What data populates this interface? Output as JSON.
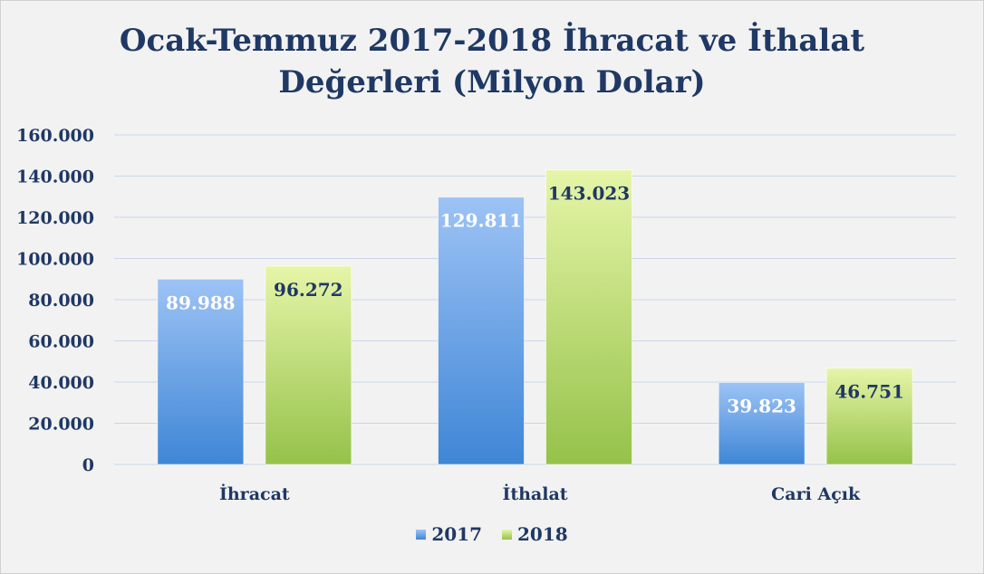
{
  "chart_data": {
    "type": "bar",
    "title_lines": [
      "Ocak-Temmuz 2017-2018 İhracat ve İthalat",
      "Değerleri (Milyon Dolar)"
    ],
    "categories": [
      "İhracat",
      "İthalat",
      "Cari Açık"
    ],
    "series": [
      {
        "name": "2017",
        "values": [
          89988,
          129811,
          39823
        ],
        "labels": [
          "89.988",
          "129.811",
          "39.823"
        ],
        "color_top": "#9dc3f5",
        "color_bottom": "#3f86d6",
        "label_color": "#ffffff"
      },
      {
        "name": "2018",
        "values": [
          96272,
          143023,
          46751
        ],
        "labels": [
          "96.272",
          "143.023",
          "46.751"
        ],
        "color_top": "#e6f5a8",
        "color_bottom": "#95c24a",
        "label_color": "#1f3864"
      }
    ],
    "yticks": [
      "0",
      "20.000",
      "40.000",
      "60.000",
      "80.000",
      "100.000",
      "120.000",
      "140.000",
      "160.000"
    ],
    "ylim": [
      0,
      160000
    ],
    "grid": true,
    "legend": "bottom"
  },
  "colors": {
    "title": "#1f3864",
    "grid": "#c9d7ea",
    "background": "#f2f2f2"
  }
}
